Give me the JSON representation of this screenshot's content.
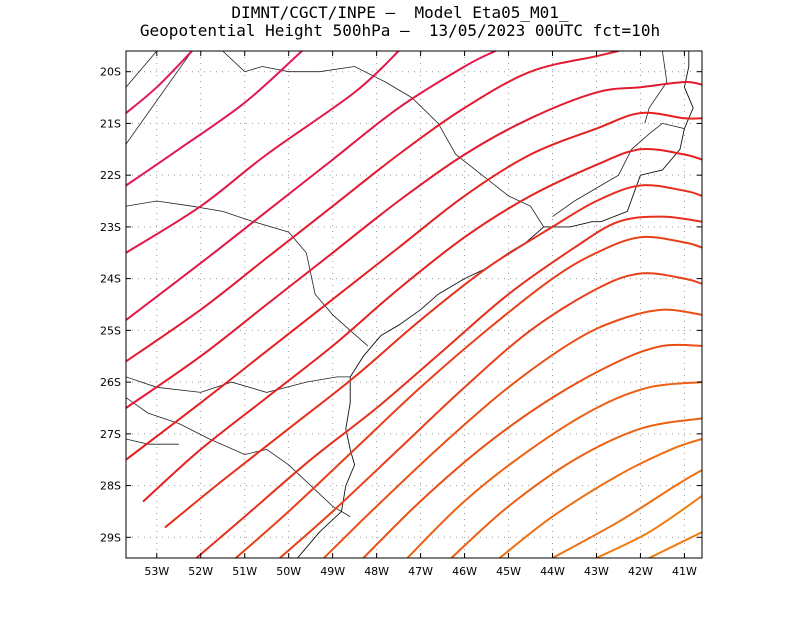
{
  "header": {
    "line1": "DIMNT/CGCT/INPE –  Model Eta05_M01_",
    "line2": "Geopotential Height 500hPa –  13/05/2023 00UTC fct=10h"
  },
  "map": {
    "lon_range": [
      -53.7,
      -40.6
    ],
    "lat_range": [
      -29.4,
      -19.6
    ],
    "lon_ticks": [
      {
        "value": -53,
        "label": "53W"
      },
      {
        "value": -52,
        "label": "52W"
      },
      {
        "value": -51,
        "label": "51W"
      },
      {
        "value": -50,
        "label": "50W"
      },
      {
        "value": -49,
        "label": "49W"
      },
      {
        "value": -48,
        "label": "48W"
      },
      {
        "value": -47,
        "label": "47W"
      },
      {
        "value": -46,
        "label": "46W"
      },
      {
        "value": -45,
        "label": "45W"
      },
      {
        "value": -44,
        "label": "44W"
      },
      {
        "value": -43,
        "label": "43W"
      },
      {
        "value": -42,
        "label": "42W"
      },
      {
        "value": -41,
        "label": "41W"
      }
    ],
    "lat_ticks": [
      {
        "value": -20,
        "label": "20S"
      },
      {
        "value": -21,
        "label": "21S"
      },
      {
        "value": -22,
        "label": "22S"
      },
      {
        "value": -23,
        "label": "23S"
      },
      {
        "value": -24,
        "label": "24S"
      },
      {
        "value": -25,
        "label": "25S"
      },
      {
        "value": -26,
        "label": "26S"
      },
      {
        "value": -27,
        "label": "27S"
      },
      {
        "value": -28,
        "label": "28S"
      },
      {
        "value": -29,
        "label": "29S"
      }
    ],
    "grid": true,
    "contour_colors": [
      "#e0185a",
      "#e21848",
      "#e41a30",
      "#e52020",
      "#e6301e",
      "#e8401a",
      "#ea5016",
      "#ec6014",
      "#ee6e12",
      "#f07c10"
    ],
    "contours": [
      [
        [
          -53.7,
          -20.8
        ],
        [
          -53,
          -20.3
        ],
        [
          -52.2,
          -19.6
        ]
      ],
      [
        [
          -53.7,
          -22.2
        ],
        [
          -52.5,
          -21.5
        ],
        [
          -51,
          -20.6
        ],
        [
          -49.7,
          -19.6
        ]
      ],
      [
        [
          -53.7,
          -23.5
        ],
        [
          -52,
          -22.6
        ],
        [
          -50.5,
          -21.6
        ],
        [
          -48.5,
          -20.4
        ],
        [
          -47.5,
          -19.6
        ]
      ],
      [
        [
          -53.7,
          -24.8
        ],
        [
          -52,
          -23.7
        ],
        [
          -50.5,
          -22.7
        ],
        [
          -49,
          -21.7
        ],
        [
          -47.5,
          -20.7
        ],
        [
          -46,
          -19.9
        ],
        [
          -45.3,
          -19.6
        ]
      ],
      [
        [
          -53.7,
          -25.6
        ],
        [
          -52,
          -24.6
        ],
        [
          -50.5,
          -23.6
        ],
        [
          -49,
          -22.6
        ],
        [
          -47.5,
          -21.6
        ],
        [
          -46,
          -20.7
        ],
        [
          -44.5,
          -20.0
        ],
        [
          -43,
          -19.7
        ],
        [
          -42.5,
          -19.6
        ]
      ],
      [
        [
          -53.7,
          -26.5
        ],
        [
          -52,
          -25.5
        ],
        [
          -50.5,
          -24.5
        ],
        [
          -49,
          -23.5
        ],
        [
          -47.5,
          -22.5
        ],
        [
          -46,
          -21.6
        ],
        [
          -44.5,
          -20.9
        ],
        [
          -43,
          -20.4
        ],
        [
          -42,
          -20.3
        ],
        [
          -41,
          -20.2
        ],
        [
          -40.6,
          -20.25
        ]
      ],
      [
        [
          -53.7,
          -27.5
        ],
        [
          -52,
          -26.4
        ],
        [
          -50.5,
          -25.4
        ],
        [
          -49,
          -24.4
        ],
        [
          -47.5,
          -23.4
        ],
        [
          -46,
          -22.4
        ],
        [
          -44.5,
          -21.6
        ],
        [
          -43,
          -21.1
        ],
        [
          -42,
          -20.8
        ],
        [
          -41,
          -20.9
        ],
        [
          -40.6,
          -20.9
        ]
      ],
      [
        [
          -53.3,
          -28.3
        ],
        [
          -52,
          -27.3
        ],
        [
          -50.5,
          -26.3
        ],
        [
          -49,
          -25.3
        ],
        [
          -47.5,
          -24.2
        ],
        [
          -46,
          -23.2
        ],
        [
          -44.5,
          -22.4
        ],
        [
          -43,
          -21.8
        ],
        [
          -42,
          -21.5
        ],
        [
          -41,
          -21.6
        ],
        [
          -40.6,
          -21.7
        ]
      ],
      [
        [
          -52.8,
          -28.8
        ],
        [
          -51.5,
          -27.9
        ],
        [
          -50,
          -26.9
        ],
        [
          -48.5,
          -25.9
        ],
        [
          -47,
          -24.8
        ],
        [
          -45.5,
          -23.8
        ],
        [
          -44,
          -23.0
        ],
        [
          -43,
          -22.5
        ],
        [
          -42,
          -22.2
        ],
        [
          -41,
          -22.3
        ],
        [
          -40.6,
          -22.4
        ]
      ],
      [
        [
          -52.1,
          -29.4
        ],
        [
          -51,
          -28.6
        ],
        [
          -49.5,
          -27.5
        ],
        [
          -48,
          -26.5
        ],
        [
          -46.5,
          -25.4
        ],
        [
          -45,
          -24.3
        ],
        [
          -43.5,
          -23.4
        ],
        [
          -42.5,
          -22.9
        ],
        [
          -41.5,
          -22.8
        ],
        [
          -40.6,
          -22.9
        ]
      ],
      [
        [
          -51.2,
          -29.4
        ],
        [
          -50,
          -28.5
        ],
        [
          -48.5,
          -27.3
        ],
        [
          -47,
          -26.1
        ],
        [
          -45.5,
          -25.0
        ],
        [
          -44,
          -24.0
        ],
        [
          -43,
          -23.5
        ],
        [
          -42,
          -23.2
        ],
        [
          -41,
          -23.3
        ],
        [
          -40.6,
          -23.4
        ]
      ],
      [
        [
          -50.2,
          -29.4
        ],
        [
          -49,
          -28.5
        ],
        [
          -47.5,
          -27.3
        ],
        [
          -46,
          -26.1
        ],
        [
          -44.5,
          -25.0
        ],
        [
          -43,
          -24.2
        ],
        [
          -42,
          -23.9
        ],
        [
          -41,
          -24.0
        ],
        [
          -40.6,
          -24.1
        ]
      ],
      [
        [
          -49.2,
          -29.4
        ],
        [
          -48,
          -28.4
        ],
        [
          -46.5,
          -27.2
        ],
        [
          -45,
          -26.1
        ],
        [
          -43.5,
          -25.2
        ],
        [
          -42.5,
          -24.8
        ],
        [
          -41.5,
          -24.6
        ],
        [
          -40.6,
          -24.7
        ]
      ],
      [
        [
          -48.3,
          -29.4
        ],
        [
          -47,
          -28.3
        ],
        [
          -45.5,
          -27.2
        ],
        [
          -44,
          -26.3
        ],
        [
          -42.5,
          -25.6
        ],
        [
          -41.5,
          -25.3
        ],
        [
          -40.6,
          -25.3
        ]
      ],
      [
        [
          -47.3,
          -29.4
        ],
        [
          -46,
          -28.3
        ],
        [
          -44.5,
          -27.3
        ],
        [
          -43,
          -26.5
        ],
        [
          -41.8,
          -26.1
        ],
        [
          -40.6,
          -26.0
        ]
      ],
      [
        [
          -46.3,
          -29.4
        ],
        [
          -45,
          -28.4
        ],
        [
          -43.5,
          -27.5
        ],
        [
          -42,
          -26.9
        ],
        [
          -40.6,
          -26.7
        ]
      ],
      [
        [
          -45.2,
          -29.4
        ],
        [
          -44,
          -28.6
        ],
        [
          -42.5,
          -27.8
        ],
        [
          -41.3,
          -27.3
        ],
        [
          -40.6,
          -27.1
        ]
      ],
      [
        [
          -44.0,
          -29.4
        ],
        [
          -42.5,
          -28.7
        ],
        [
          -41.2,
          -28.0
        ],
        [
          -40.6,
          -27.7
        ]
      ],
      [
        [
          -43.0,
          -29.4
        ],
        [
          -41.8,
          -28.9
        ],
        [
          -40.6,
          -28.2
        ]
      ],
      [
        [
          -41.8,
          -29.4
        ],
        [
          -40.6,
          -28.9
        ]
      ]
    ],
    "coastline": [
      [
        [
          -40.9,
          -19.6
        ],
        [
          -40.9,
          -19.9
        ],
        [
          -41.0,
          -20.3
        ],
        [
          -40.8,
          -20.7
        ],
        [
          -41.0,
          -21.1
        ],
        [
          -41.1,
          -21.5
        ],
        [
          -41.5,
          -21.9
        ],
        [
          -42.0,
          -22.0
        ],
        [
          -42.3,
          -22.7
        ],
        [
          -42.9,
          -22.9
        ],
        [
          -43.1,
          -22.9
        ],
        [
          -43.6,
          -23.0
        ],
        [
          -44.2,
          -23.0
        ],
        [
          -44.6,
          -23.3
        ],
        [
          -45.0,
          -23.5
        ],
        [
          -45.5,
          -23.8
        ],
        [
          -46.0,
          -24.0
        ],
        [
          -46.6,
          -24.3
        ],
        [
          -47.0,
          -24.6
        ],
        [
          -47.5,
          -24.9
        ],
        [
          -47.9,
          -25.1
        ],
        [
          -48.3,
          -25.5
        ],
        [
          -48.6,
          -25.9
        ],
        [
          -48.6,
          -26.4
        ],
        [
          -48.7,
          -26.9
        ],
        [
          -48.6,
          -27.3
        ],
        [
          -48.5,
          -27.6
        ],
        [
          -48.7,
          -28.0
        ],
        [
          -48.8,
          -28.5
        ],
        [
          -49.3,
          -28.9
        ],
        [
          -49.7,
          -29.3
        ],
        [
          -49.8,
          -29.4
        ]
      ]
    ],
    "borders": [
      [
        [
          -53.7,
          -26.3
        ],
        [
          -53.2,
          -26.6
        ],
        [
          -52.5,
          -26.8
        ],
        [
          -51.8,
          -27.1
        ],
        [
          -51.0,
          -27.4
        ],
        [
          -50.5,
          -27.3
        ],
        [
          -50.0,
          -27.6
        ],
        [
          -49.5,
          -28.0
        ],
        [
          -49.0,
          -28.4
        ],
        [
          -48.6,
          -28.6
        ]
      ],
      [
        [
          -53.7,
          -25.9
        ],
        [
          -53.0,
          -26.1
        ],
        [
          -52.0,
          -26.2
        ],
        [
          -51.3,
          -26.0
        ],
        [
          -50.5,
          -26.2
        ],
        [
          -49.6,
          -26.0
        ],
        [
          -48.9,
          -25.9
        ],
        [
          -48.6,
          -25.9
        ]
      ],
      [
        [
          -53.7,
          -22.6
        ],
        [
          -53.0,
          -22.5
        ],
        [
          -52.2,
          -22.6
        ],
        [
          -51.5,
          -22.7
        ],
        [
          -50.8,
          -22.9
        ],
        [
          -50.0,
          -23.1
        ],
        [
          -49.6,
          -23.5
        ],
        [
          -49.4,
          -24.3
        ],
        [
          -49.0,
          -24.7
        ],
        [
          -48.6,
          -25.0
        ],
        [
          -48.2,
          -25.3
        ]
      ],
      [
        [
          -51.5,
          -19.6
        ],
        [
          -51.0,
          -20.0
        ],
        [
          -50.6,
          -19.9
        ],
        [
          -50.0,
          -20.0
        ],
        [
          -49.3,
          -20.0
        ],
        [
          -48.5,
          -19.9
        ],
        [
          -47.8,
          -20.2
        ],
        [
          -47.2,
          -20.5
        ],
        [
          -46.6,
          -21.0
        ],
        [
          -46.2,
          -21.6
        ],
        [
          -45.6,
          -22.0
        ],
        [
          -45.0,
          -22.4
        ],
        [
          -44.5,
          -22.6
        ],
        [
          -44.2,
          -23.0
        ]
      ],
      [
        [
          -53.0,
          -19.6
        ],
        [
          -53.7,
          -20.3
        ]
      ],
      [
        [
          -52.2,
          -19.6
        ],
        [
          -53.7,
          -21.4
        ]
      ],
      [
        [
          -44.0,
          -22.8
        ],
        [
          -43.5,
          -22.5
        ],
        [
          -42.9,
          -22.2
        ],
        [
          -42.5,
          -22.0
        ],
        [
          -42.2,
          -21.5
        ],
        [
          -41.8,
          -21.2
        ],
        [
          -41.5,
          -21.0
        ],
        [
          -41.0,
          -21.1
        ]
      ],
      [
        [
          -41.5,
          -19.6
        ],
        [
          -41.4,
          -20.2
        ],
        [
          -41.8,
          -20.7
        ],
        [
          -41.9,
          -21.0
        ]
      ],
      [
        [
          -53.7,
          -27.1
        ],
        [
          -53.2,
          -27.2
        ],
        [
          -52.5,
          -27.2
        ]
      ]
    ]
  }
}
